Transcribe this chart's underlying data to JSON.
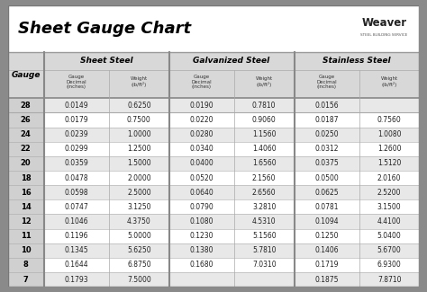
{
  "title": "Sheet Gauge Chart",
  "bg_outer": "#8a8a8a",
  "bg_inner": "#ffffff",
  "bg_row_even": "#e8e8e8",
  "bg_row_odd": "#ffffff",
  "gauge_col_bg": "#d0d0d0",
  "section_header_bg": "#d8d8d8",
  "gauges": [
    28,
    26,
    24,
    22,
    20,
    18,
    16,
    14,
    12,
    11,
    10,
    8,
    7
  ],
  "sheet_steel": {
    "label": "Sheet Steel",
    "decimal": [
      "0.0149",
      "0.0179",
      "0.0239",
      "0.0299",
      "0.0359",
      "0.0478",
      "0.0598",
      "0.0747",
      "0.1046",
      "0.1196",
      "0.1345",
      "0.1644",
      "0.1793"
    ],
    "weight": [
      "0.6250",
      "0.7500",
      "1.0000",
      "1.2500",
      "1.5000",
      "2.0000",
      "2.5000",
      "3.1250",
      "4.3750",
      "5.0000",
      "5.6250",
      "6.8750",
      "7.5000"
    ]
  },
  "galvanized_steel": {
    "label": "Galvanized Steel",
    "decimal": [
      "0.0190",
      "0.0220",
      "0.0280",
      "0.0340",
      "0.0400",
      "0.0520",
      "0.0640",
      "0.0790",
      "0.1080",
      "0.1230",
      "0.1380",
      "0.1680",
      ""
    ],
    "weight": [
      "0.7810",
      "0.9060",
      "1.1560",
      "1.4060",
      "1.6560",
      "2.1560",
      "2.6560",
      "3.2810",
      "4.5310",
      "5.1560",
      "5.7810",
      "7.0310",
      ""
    ]
  },
  "stainless_steel": {
    "label": "Stainless Steel",
    "decimal": [
      "0.0156",
      "0.0187",
      "0.0250",
      "0.0312",
      "0.0375",
      "0.0500",
      "0.0625",
      "0.0781",
      "0.1094",
      "0.1250",
      "0.1406",
      "0.1719",
      "0.1875"
    ],
    "weight": [
      "",
      "0.7560",
      "1.0080",
      "1.2600",
      "1.5120",
      "2.0160",
      "2.5200",
      "3.1500",
      "4.4100",
      "5.0400",
      "5.6700",
      "6.9300",
      "7.8710"
    ]
  }
}
